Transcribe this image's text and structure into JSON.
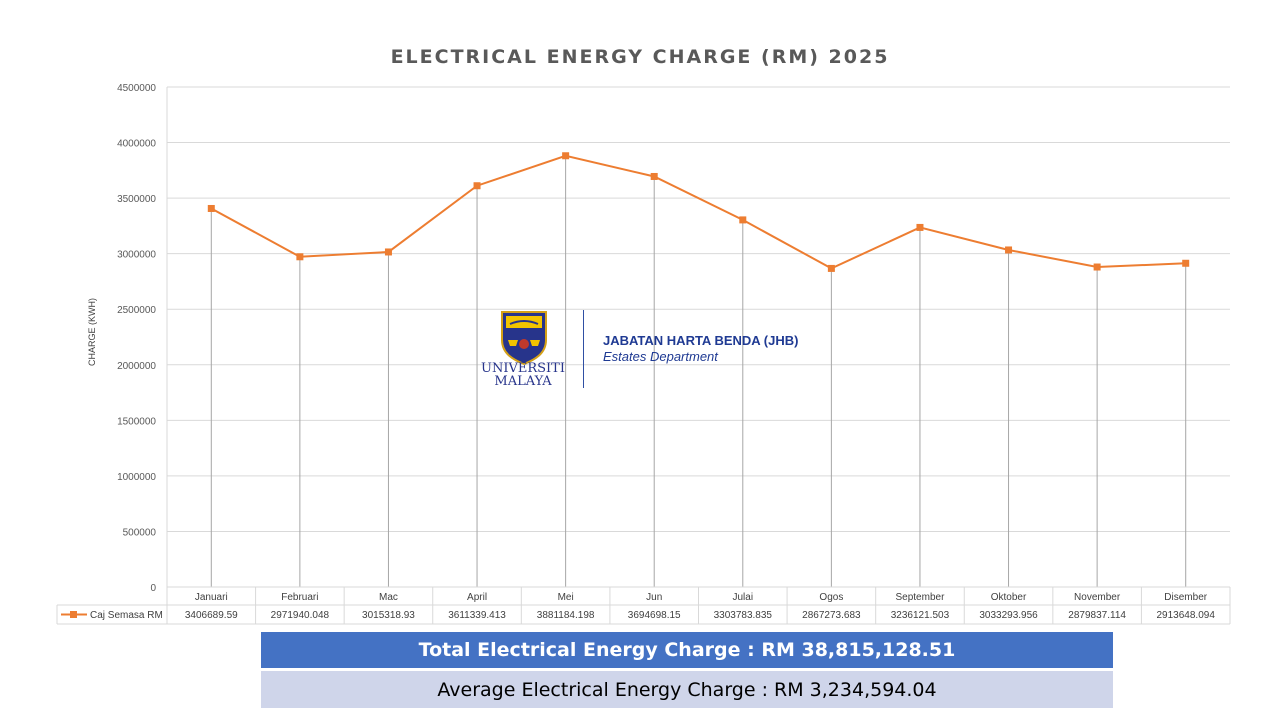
{
  "chart_data": {
    "type": "line",
    "title": "ELECTRICAL ENERGY CHARGE (RM) 2025",
    "xlabel": "",
    "ylabel": "CHARGE (KWH)",
    "ylim": [
      0,
      4500000
    ],
    "yticks": [
      "0",
      "500000",
      "1000000",
      "1500000",
      "2000000",
      "2500000",
      "3000000",
      "3500000",
      "4000000",
      "4500000"
    ],
    "categories": [
      "Januari",
      "Februari",
      "Mac",
      "April",
      "Mei",
      "Jun",
      "Julai",
      "Ogos",
      "September",
      "Oktober",
      "November",
      "Disember"
    ],
    "series": [
      {
        "name": "Caj Semasa RM",
        "values": [
          3406689.59,
          2971940.048,
          3015318.93,
          3611339.413,
          3881184.198,
          3694698.15,
          3303783.835,
          2867273.683,
          3236121.503,
          3033293.956,
          2879837.114,
          2913648.094
        ],
        "labels": [
          "3406689.59",
          "2971940.048",
          "3015318.93",
          "3611339.413",
          "3881184.198",
          "3694698.15",
          "3303783.835",
          "2867273.683",
          "3236121.503",
          "3033293.956",
          "2879837.114",
          "2913648.094"
        ],
        "color": "#ed7d31"
      }
    ],
    "grid": true,
    "legend": "data-table-left"
  },
  "logo": {
    "university_line1": "UNIVERSITI",
    "university_line2": "MALAYA",
    "department": "JABATAN HARTA BENDA (JHB)",
    "department_sub": "Estates Department"
  },
  "summary": {
    "total": "Total Electrical Energy Charge : RM 38,815,128.51",
    "average": "Average Electrical Energy Charge : RM 3,234,594.04"
  },
  "colors": {
    "series": "#ed7d31",
    "total_bg": "#4472c4",
    "average_bg": "#cfd5ea",
    "logo_blue": "#27348b"
  }
}
